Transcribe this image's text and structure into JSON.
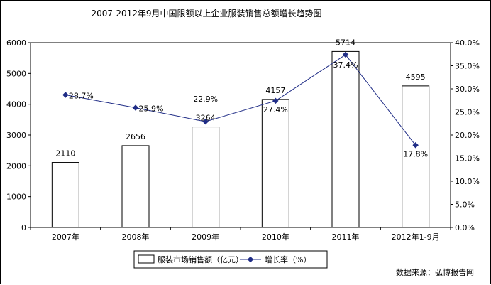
{
  "chart_data": {
    "type": "bar",
    "title": "2007-2012年9月中国限额以上企业服装销售总额增长趋势图",
    "categories": [
      "2007年",
      "2008年",
      "2009年",
      "2010年",
      "2011年",
      "2012年1-9月"
    ],
    "series": [
      {
        "name": "服装市场销售额（亿元）",
        "type": "bar",
        "axis": "left",
        "values": [
          2110,
          2656,
          3264,
          4157,
          5714,
          4595
        ],
        "labels": [
          "2110",
          "2656",
          "3264",
          "4157",
          "5714",
          "4595"
        ],
        "color": "#ffffff"
      },
      {
        "name": "增长率（%）",
        "type": "line",
        "axis": "right",
        "values": [
          28.7,
          25.9,
          22.9,
          27.4,
          37.4,
          17.8
        ],
        "labels": [
          "28.7%",
          "25.9%",
          "22.9%",
          "27.4%",
          "37.4%",
          "17.8%"
        ],
        "color": "#1f2c86"
      }
    ],
    "ylim": [
      0,
      6000
    ],
    "y_ticks": [
      0,
      1000,
      2000,
      3000,
      4000,
      5000,
      6000
    ],
    "y2lim": [
      0,
      40
    ],
    "y2_ticks": [
      0,
      5,
      10,
      15,
      20,
      25,
      30,
      35,
      40
    ],
    "y2_tick_labels": [
      "0.0%",
      "5.0%",
      "10.0%",
      "15.0%",
      "20.0%",
      "25.0%",
      "30.0%",
      "35.0%",
      "40.0%"
    ],
    "grid": false,
    "legend": "bottom",
    "source_note": "数据来源：弘博报告网"
  }
}
